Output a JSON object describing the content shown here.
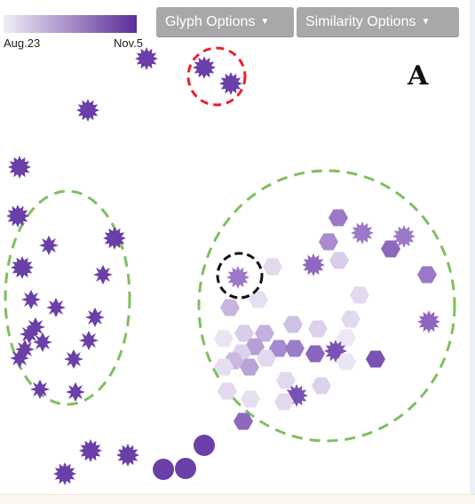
{
  "legend": {
    "start_label": "Aug.23",
    "end_label": "Nov.5",
    "color_start": "#f1eef7",
    "color_end": "#5a2c98"
  },
  "toolbar": {
    "glyph_options_label": "Glyph Options",
    "similarity_options_label": "Similarity Options"
  },
  "panel_label": "A",
  "colors": {
    "green_cluster": "#7fbf5f",
    "red_highlight": "#e8222a",
    "black_highlight": "#111111"
  }
}
